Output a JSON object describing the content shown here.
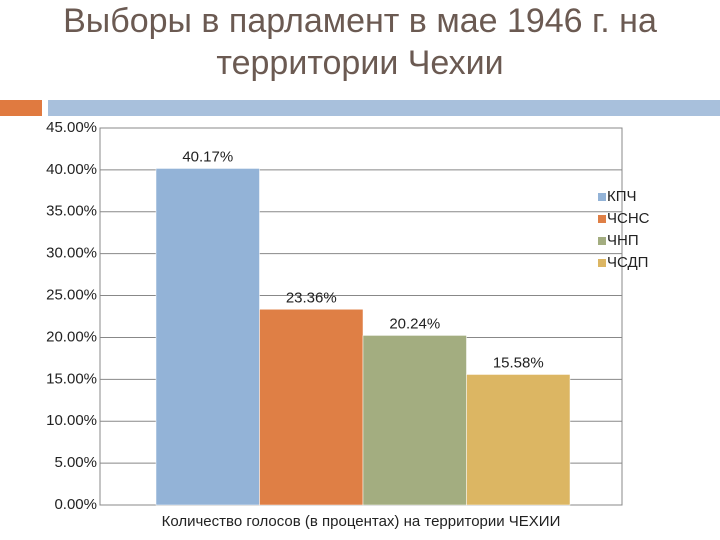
{
  "chart_data": {
    "type": "bar",
    "title": "Выборы в парламент в мае 1946 г. на территории Чехии",
    "categories": [
      "Количество голосов (в процентах) на территории ЧЕХИИ"
    ],
    "series": [
      {
        "name": "КПЧ",
        "color": "#93b3d7",
        "values": [
          40.17
        ],
        "value_labels": [
          "40.17%"
        ]
      },
      {
        "name": "ЧСНС",
        "color": "#df7f45",
        "values": [
          23.36
        ],
        "value_labels": [
          "23.36%"
        ]
      },
      {
        "name": "ЧНП",
        "color": "#a3ad80",
        "values": [
          20.24
        ],
        "value_labels": [
          "20.24%"
        ]
      },
      {
        "name": "ЧСДП",
        "color": "#dcb663",
        "values": [
          15.58
        ],
        "value_labels": [
          "15.58%"
        ]
      }
    ],
    "ylim": [
      0,
      45
    ],
    "yticks": [
      {
        "value": 0,
        "label": "0.00%"
      },
      {
        "value": 5,
        "label": "5.00%"
      },
      {
        "value": 10,
        "label": "10.00%"
      },
      {
        "value": 15,
        "label": "15.00%"
      },
      {
        "value": 20,
        "label": "20.00%"
      },
      {
        "value": 25,
        "label": "25.00%"
      },
      {
        "value": 30,
        "label": "30.00%"
      },
      {
        "value": 35,
        "label": "35.00%"
      },
      {
        "value": 40,
        "label": "40.00%"
      },
      {
        "value": 45,
        "label": "45.00%"
      }
    ],
    "grid": true
  }
}
